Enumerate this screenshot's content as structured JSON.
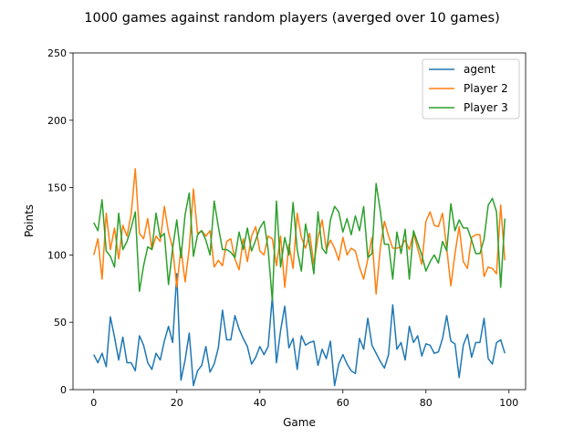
{
  "chart_data": {
    "type": "line",
    "title": "1000 games against random players (averged over 10 games)",
    "xlabel": "Game",
    "ylabel": "Points",
    "xlim": [
      -5,
      104
    ],
    "ylim": [
      0,
      250
    ],
    "xticks": [
      0,
      20,
      40,
      60,
      80,
      100
    ],
    "yticks": [
      0,
      50,
      100,
      150,
      200,
      250
    ],
    "grid": false,
    "legend_position": "top-right",
    "series": [
      {
        "name": "agent",
        "color": "#1f77b4",
        "values": [
          26,
          20,
          27,
          17,
          54,
          39,
          22,
          39,
          20,
          20,
          14,
          40,
          33,
          20,
          15,
          27,
          22,
          36,
          47,
          35,
          86,
          7,
          22,
          42,
          3,
          14,
          18,
          32,
          13,
          19,
          31,
          59,
          37,
          37,
          55,
          45,
          38,
          32,
          19,
          24,
          32,
          26,
          32,
          69,
          20,
          44,
          62,
          31,
          38,
          15,
          40,
          33,
          35,
          36,
          18,
          30,
          23,
          36,
          3,
          19,
          26,
          19,
          14,
          12,
          38,
          30,
          53,
          33,
          27,
          21,
          16,
          26,
          63,
          30,
          35,
          22,
          47,
          35,
          40,
          25,
          34,
          33,
          27,
          28,
          38,
          55,
          36,
          34,
          9,
          33,
          41,
          24,
          35,
          35,
          53,
          23,
          19,
          35,
          37,
          27
        ]
      },
      {
        "name": "Player 2",
        "color": "#ff7f0e",
        "values": [
          100,
          112,
          82,
          131,
          104,
          120,
          97,
          122,
          114,
          130,
          164,
          116,
          112,
          127,
          104,
          114,
          110,
          136,
          117,
          105,
          76,
          105,
          80,
          105,
          149,
          116,
          118,
          114,
          118,
          91,
          96,
          92,
          110,
          112,
          97,
          89,
          112,
          95,
          114,
          121,
          103,
          100,
          114,
          112,
          92,
          114,
          76,
          108,
          90,
          131,
          113,
          105,
          116,
          93,
          113,
          126,
          104,
          111,
          105,
          96,
          113,
          100,
          105,
          103,
          91,
          82,
          97,
          113,
          71,
          105,
          125,
          114,
          105,
          105,
          106,
          111,
          104,
          116,
          105,
          93,
          125,
          132,
          122,
          121,
          131,
          105,
          77,
          101,
          121,
          95,
          90,
          113,
          115,
          115,
          84,
          91,
          90,
          86,
          137,
          96
        ]
      },
      {
        "name": "Player 3",
        "color": "#2ca02c",
        "values": [
          124,
          118,
          141,
          103,
          99,
          91,
          131,
          104,
          110,
          120,
          132,
          73,
          92,
          106,
          104,
          131,
          113,
          116,
          78,
          105,
          126,
          98,
          130,
          146,
          99,
          115,
          118,
          111,
          100,
          140,
          121,
          104,
          104,
          102,
          98,
          117,
          104,
          120,
          103,
          111,
          120,
          125,
          104,
          66,
          140,
          91,
          113,
          100,
          139,
          104,
          88,
          123,
          107,
          86,
          132,
          105,
          101,
          126,
          136,
          132,
          117,
          127,
          115,
          129,
          118,
          136,
          98,
          101,
          153,
          133,
          108,
          108,
          82,
          117,
          101,
          119,
          82,
          118,
          109,
          100,
          88,
          95,
          100,
          94,
          110,
          103,
          138,
          118,
          126,
          120,
          120,
          111,
          101,
          101,
          112,
          137,
          142,
          132,
          76,
          127
        ]
      }
    ]
  }
}
